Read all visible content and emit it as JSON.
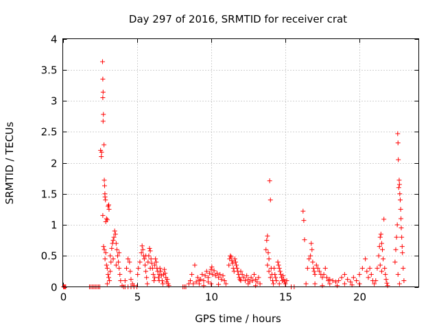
{
  "chart_data": {
    "type": "scatter",
    "title": "Day 297 of 2016, SRMTID for receiver crat",
    "xlabel": "GPS time / hours",
    "ylabel": "SRMTID / TECUs",
    "xlim": [
      0,
      24
    ],
    "ylim": [
      0,
      4
    ],
    "xticks": [
      0,
      5,
      10,
      15,
      20
    ],
    "yticks": [
      0,
      0.5,
      1,
      1.5,
      2,
      2.5,
      3,
      3.5,
      4
    ],
    "xtick_labels": [
      "0",
      "5",
      "10",
      "15",
      "20"
    ],
    "ytick_labels": [
      "0",
      "0.5",
      "1",
      "1.5",
      "2",
      "2.5",
      "3",
      "3.5",
      "4"
    ],
    "grid": true,
    "legend": "none",
    "marker": "plus",
    "color": "#ff0000",
    "series": [
      {
        "points": [
          [
            0.05,
            0
          ],
          [
            0.1,
            0
          ],
          [
            0.15,
            0
          ],
          [
            0.2,
            0
          ],
          [
            1.8,
            0
          ],
          [
            1.9,
            0
          ],
          [
            2.0,
            0
          ],
          [
            2.1,
            0
          ],
          [
            2.2,
            0
          ],
          [
            2.3,
            0
          ],
          [
            2.4,
            0
          ],
          [
            2.5,
            0
          ],
          [
            2.55,
            2.2
          ],
          [
            2.6,
            2.1
          ],
          [
            2.62,
            2.17
          ],
          [
            2.68,
            3.63
          ],
          [
            2.7,
            3.35
          ],
          [
            2.72,
            3.14
          ],
          [
            2.7,
            3.05
          ],
          [
            2.74,
            2.78
          ],
          [
            2.72,
            2.67
          ],
          [
            2.78,
            2.29
          ],
          [
            2.8,
            1.72
          ],
          [
            2.82,
            1.63
          ],
          [
            2.84,
            1.5
          ],
          [
            2.85,
            1.45
          ],
          [
            2.88,
            1.4
          ],
          [
            2.7,
            1.15
          ],
          [
            2.9,
            1.05
          ],
          [
            2.95,
            1.1
          ],
          [
            3.0,
            1.08
          ],
          [
            3.05,
            1.3
          ],
          [
            3.1,
            1.32
          ],
          [
            3.12,
            1.25
          ],
          [
            2.75,
            0.65
          ],
          [
            2.8,
            0.6
          ],
          [
            2.85,
            0.45
          ],
          [
            2.9,
            0.55
          ],
          [
            2.95,
            0.35
          ],
          [
            3.0,
            0.3
          ],
          [
            3.05,
            0.2
          ],
          [
            3.1,
            0.15
          ],
          [
            3.15,
            0.1
          ],
          [
            3.2,
            0.5
          ],
          [
            3.25,
            0.4
          ],
          [
            3.3,
            0.62
          ],
          [
            3.35,
            0.7
          ],
          [
            3.4,
            0.75
          ],
          [
            3.45,
            0.8
          ],
          [
            3.5,
            0.9
          ],
          [
            3.55,
            0.85
          ],
          [
            3.6,
            0.7
          ],
          [
            3.65,
            0.6
          ],
          [
            3.7,
            0.5
          ],
          [
            3.75,
            0.4
          ],
          [
            3.8,
            0.3
          ],
          [
            3.85,
            0.2
          ],
          [
            3.9,
            0.1
          ],
          [
            3.0,
            0.05
          ],
          [
            3.2,
            0.25
          ],
          [
            3.4,
            0.45
          ],
          [
            3.6,
            0.35
          ],
          [
            3.8,
            0.55
          ],
          [
            4.0,
            0.02
          ],
          [
            4.1,
            0
          ],
          [
            4.2,
            0.1
          ],
          [
            4.3,
            0.3
          ],
          [
            4.4,
            0.45
          ],
          [
            4.5,
            0.4
          ],
          [
            4.55,
            0.25
          ],
          [
            4.6,
            0.12
          ],
          [
            4.7,
            0.05
          ],
          [
            4.8,
            0.02
          ],
          [
            4.2,
            0
          ],
          [
            4.4,
            0
          ],
          [
            4.6,
            0
          ],
          [
            4.8,
            0
          ],
          [
            5.0,
            0
          ],
          [
            5.05,
            0.2
          ],
          [
            5.1,
            0.3
          ],
          [
            5.2,
            0.4
          ],
          [
            5.3,
            0.55
          ],
          [
            5.35,
            0.66
          ],
          [
            5.4,
            0.6
          ],
          [
            5.45,
            0.5
          ],
          [
            5.5,
            0.45
          ],
          [
            5.55,
            0.35
          ],
          [
            5.6,
            0.25
          ],
          [
            5.65,
            0.15
          ],
          [
            5.7,
            0.05
          ],
          [
            5.75,
            0.4
          ],
          [
            5.8,
            0.5
          ],
          [
            5.85,
            0.62
          ],
          [
            5.9,
            0.58
          ],
          [
            5.95,
            0.45
          ],
          [
            6.0,
            0.38
          ],
          [
            6.05,
            0.3
          ],
          [
            6.1,
            0.2
          ],
          [
            6.15,
            0.1
          ],
          [
            6.2,
            0.35
          ],
          [
            6.25,
            0.45
          ],
          [
            6.3,
            0.4
          ],
          [
            6.35,
            0.3
          ],
          [
            6.4,
            0.25
          ],
          [
            6.45,
            0.15
          ],
          [
            6.5,
            0.2
          ],
          [
            6.55,
            0.3
          ],
          [
            6.6,
            0.25
          ],
          [
            6.65,
            0.18
          ],
          [
            6.7,
            0.1
          ],
          [
            6.75,
            0.05
          ],
          [
            6.8,
            0.2
          ],
          [
            6.85,
            0.28
          ],
          [
            6.9,
            0.22
          ],
          [
            6.95,
            0.15
          ],
          [
            7.0,
            0.08
          ],
          [
            7.05,
            0.12
          ],
          [
            7.1,
            0.05
          ],
          [
            7.15,
            0.02
          ],
          [
            5.6,
            0.5
          ],
          [
            5.9,
            0.3
          ],
          [
            6.2,
            0.15
          ],
          [
            6.5,
            0.1
          ],
          [
            8.1,
            0
          ],
          [
            8.2,
            0
          ],
          [
            8.3,
            0
          ],
          [
            8.5,
            0.05
          ],
          [
            8.6,
            0.1
          ],
          [
            8.7,
            0.2
          ],
          [
            8.8,
            0.05
          ],
          [
            8.9,
            0.35
          ],
          [
            9.0,
            0.08
          ],
          [
            9.1,
            0.15
          ],
          [
            9.2,
            0.05
          ],
          [
            9.3,
            0.12
          ],
          [
            9.4,
            0.2
          ],
          [
            9.5,
            0.1
          ],
          [
            9.6,
            0.18
          ],
          [
            9.7,
            0.25
          ],
          [
            9.8,
            0.15
          ],
          [
            9.9,
            0.22
          ],
          [
            10.0,
            0.28
          ],
          [
            10.05,
            0.32
          ],
          [
            10.1,
            0.2
          ],
          [
            10.2,
            0.26
          ],
          [
            10.3,
            0.18
          ],
          [
            10.4,
            0.22
          ],
          [
            10.5,
            0.15
          ],
          [
            10.6,
            0.2
          ],
          [
            10.7,
            0.12
          ],
          [
            10.8,
            0.18
          ],
          [
            10.9,
            0.1
          ],
          [
            11.0,
            0.05
          ],
          [
            9.5,
            0.02
          ],
          [
            10.0,
            0.05
          ],
          [
            10.5,
            0.04
          ],
          [
            9.2,
            0.1
          ],
          [
            9.8,
            0.08
          ],
          [
            11.2,
            0.35
          ],
          [
            11.25,
            0.45
          ],
          [
            11.3,
            0.5
          ],
          [
            11.35,
            0.48
          ],
          [
            11.4,
            0.42
          ],
          [
            11.45,
            0.38
          ],
          [
            11.5,
            0.3
          ],
          [
            11.55,
            0.25
          ],
          [
            11.6,
            0.45
          ],
          [
            11.65,
            0.4
          ],
          [
            11.7,
            0.35
          ],
          [
            11.75,
            0.3
          ],
          [
            11.8,
            0.25
          ],
          [
            11.85,
            0.2
          ],
          [
            11.9,
            0.15
          ],
          [
            11.95,
            0.12
          ],
          [
            12.0,
            0.1
          ],
          [
            12.1,
            0.2
          ],
          [
            12.2,
            0.15
          ],
          [
            12.3,
            0.1
          ],
          [
            12.4,
            0.18
          ],
          [
            12.5,
            0.12
          ],
          [
            12.6,
            0.08
          ],
          [
            12.7,
            0.15
          ],
          [
            12.8,
            0.1
          ],
          [
            12.9,
            0.2
          ],
          [
            13.0,
            0.12
          ],
          [
            13.1,
            0.08
          ],
          [
            13.2,
            0.15
          ],
          [
            13.3,
            0.05
          ],
          [
            12.0,
            0.25
          ],
          [
            12.5,
            0.05
          ],
          [
            13.0,
            0.02
          ],
          [
            13.7,
            0.6
          ],
          [
            13.75,
            0.75
          ],
          [
            13.8,
            0.82
          ],
          [
            13.85,
            0.55
          ],
          [
            13.9,
            0.45
          ],
          [
            13.95,
            1.71
          ],
          [
            14.0,
            1.4
          ],
          [
            14.05,
            0.3
          ],
          [
            14.1,
            0.2
          ],
          [
            14.15,
            0.1
          ],
          [
            14.2,
            0.05
          ],
          [
            14.25,
            0.3
          ],
          [
            14.3,
            0.2
          ],
          [
            14.35,
            0.15
          ],
          [
            14.4,
            0.1
          ],
          [
            14.5,
            0.4
          ],
          [
            14.55,
            0.35
          ],
          [
            14.6,
            0.3
          ],
          [
            14.65,
            0.25
          ],
          [
            14.7,
            0.2
          ],
          [
            14.75,
            0.15
          ],
          [
            14.8,
            0.1
          ],
          [
            14.85,
            0.18
          ],
          [
            14.9,
            0.12
          ],
          [
            14.95,
            0.08
          ],
          [
            15.0,
            0.05
          ],
          [
            15.1,
            0.1
          ],
          [
            13.8,
            0.35
          ],
          [
            13.9,
            0.25
          ],
          [
            14.0,
            0.15
          ],
          [
            14.6,
            0.05
          ],
          [
            15.4,
            0
          ],
          [
            15.6,
            0
          ],
          [
            16.2,
            1.22
          ],
          [
            16.25,
            1.07
          ],
          [
            16.3,
            0.76
          ],
          [
            16.4,
            0.05
          ],
          [
            16.5,
            0.3
          ],
          [
            16.6,
            0.45
          ],
          [
            16.7,
            0.5
          ],
          [
            16.75,
            0.7
          ],
          [
            16.8,
            0.6
          ],
          [
            16.85,
            0.4
          ],
          [
            16.9,
            0.3
          ],
          [
            16.95,
            0.25
          ],
          [
            17.0,
            0.2
          ],
          [
            17.1,
            0.35
          ],
          [
            17.2,
            0.3
          ],
          [
            17.3,
            0.25
          ],
          [
            17.4,
            0.2
          ],
          [
            17.5,
            0.15
          ],
          [
            17.6,
            0.2
          ],
          [
            17.7,
            0.3
          ],
          [
            17.8,
            0.15
          ],
          [
            17.9,
            0.1
          ],
          [
            18.0,
            0.12
          ],
          [
            18.2,
            0.1
          ],
          [
            18.4,
            0.08
          ],
          [
            18.6,
            0.1
          ],
          [
            18.8,
            0.15
          ],
          [
            19.0,
            0.2
          ],
          [
            19.2,
            0.12
          ],
          [
            19.4,
            0.08
          ],
          [
            19.6,
            0.15
          ],
          [
            19.8,
            0.1
          ],
          [
            20.0,
            0.2
          ],
          [
            20.2,
            0.3
          ],
          [
            20.4,
            0.45
          ],
          [
            20.5,
            0.25
          ],
          [
            20.6,
            0.15
          ],
          [
            20.7,
            0.3
          ],
          [
            20.8,
            0.2
          ],
          [
            20.9,
            0.1
          ],
          [
            21.0,
            0.05
          ],
          [
            17.0,
            0.05
          ],
          [
            17.5,
            0.02
          ],
          [
            18.0,
            0.05
          ],
          [
            18.5,
            0.02
          ],
          [
            19.0,
            0.05
          ],
          [
            19.5,
            0.03
          ],
          [
            20.0,
            0.05
          ],
          [
            21.1,
            0.1
          ],
          [
            21.2,
            0.3
          ],
          [
            21.3,
            0.5
          ],
          [
            21.35,
            0.65
          ],
          [
            21.4,
            0.8
          ],
          [
            21.45,
            0.85
          ],
          [
            21.5,
            0.7
          ],
          [
            21.55,
            0.6
          ],
          [
            21.6,
            0.45
          ],
          [
            21.65,
            1.09
          ],
          [
            21.7,
            0.3
          ],
          [
            21.75,
            0.2
          ],
          [
            21.8,
            0.12
          ],
          [
            21.85,
            0.06
          ],
          [
            21.9,
            0.02
          ],
          [
            21.5,
            0.25
          ],
          [
            21.4,
            0.35
          ],
          [
            22.4,
            0.4
          ],
          [
            22.45,
            0.6
          ],
          [
            22.5,
            0.8
          ],
          [
            22.55,
            1.0
          ],
          [
            22.58,
            2.47
          ],
          [
            22.6,
            2.32
          ],
          [
            22.62,
            2.05
          ],
          [
            22.65,
            1.6
          ],
          [
            22.68,
            1.72
          ],
          [
            22.7,
            1.65
          ],
          [
            22.72,
            1.5
          ],
          [
            22.75,
            1.4
          ],
          [
            22.78,
            1.25
          ],
          [
            22.8,
            1.1
          ],
          [
            22.82,
            0.95
          ],
          [
            22.85,
            0.8
          ],
          [
            22.88,
            0.65
          ],
          [
            22.9,
            0.55
          ],
          [
            22.95,
            0.3
          ],
          [
            23.0,
            0.1
          ],
          [
            22.6,
            0.2
          ],
          [
            22.7,
            0.05
          ]
        ]
      }
    ]
  }
}
